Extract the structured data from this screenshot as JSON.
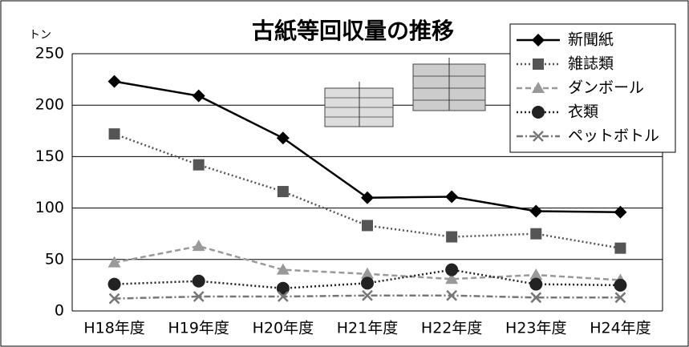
{
  "chart_data": {
    "type": "line",
    "title": "古紙等回収量の推移",
    "y_label": "トン",
    "categories": [
      "H18年度",
      "H19年度",
      "H20年度",
      "H21年度",
      "H22年度",
      "H23年度",
      "H24年度"
    ],
    "series": [
      {
        "name": "新聞紙",
        "color": "#000000",
        "marker": "diamond",
        "line_style": "solid",
        "values": [
          223,
          209,
          168,
          110,
          111,
          97,
          96
        ]
      },
      {
        "name": "雑誌類",
        "color": "#555555",
        "marker": "square",
        "line_style": "dotted",
        "values": [
          172,
          142,
          116,
          83,
          72,
          75,
          61
        ]
      },
      {
        "name": "ダンボール",
        "color": "#999999",
        "marker": "triangle",
        "line_style": "dashed",
        "values": [
          47,
          63,
          40,
          36,
          31,
          35,
          30
        ]
      },
      {
        "name": "衣類",
        "color": "#222222",
        "marker": "circle",
        "line_style": "dotted",
        "values": [
          26,
          29,
          22,
          27,
          40,
          26,
          25
        ]
      },
      {
        "name": "ペットボトル",
        "color": "#777777",
        "marker": "x",
        "line_style": "dashdot",
        "values": [
          12,
          14,
          14,
          15,
          15,
          13,
          13
        ]
      }
    ],
    "ylim": [
      0,
      250
    ],
    "yticks": [
      0,
      50,
      100,
      150,
      200,
      250
    ],
    "grid": true,
    "legend": "top-right"
  }
}
